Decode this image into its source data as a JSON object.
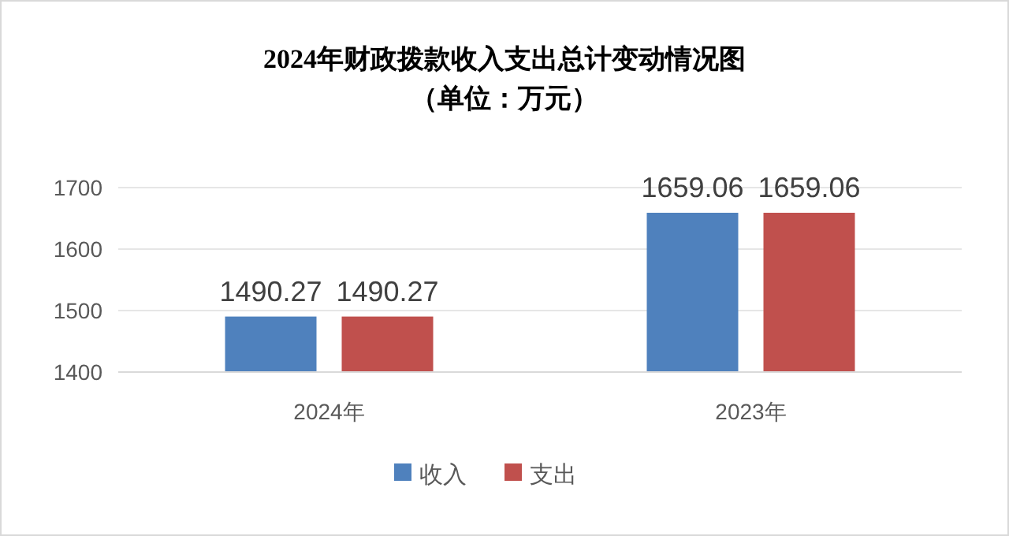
{
  "chart_data": {
    "type": "bar",
    "title": "2024年财政拨款收入支出总计变动情况图",
    "subtitle": "（单位：万元）",
    "categories": [
      "2024年",
      "2023年"
    ],
    "series": [
      {
        "name": "收入",
        "color": "#4f81bd",
        "values": [
          1490.27,
          1659.06
        ]
      },
      {
        "name": "支出",
        "color": "#c0504d",
        "values": [
          1490.27,
          1659.06
        ]
      }
    ],
    "ylim": [
      1400,
      1700
    ],
    "yticks": [
      1400,
      1500,
      1600,
      1700
    ],
    "grid": "y",
    "legend": "bottom",
    "data_labels": true
  }
}
